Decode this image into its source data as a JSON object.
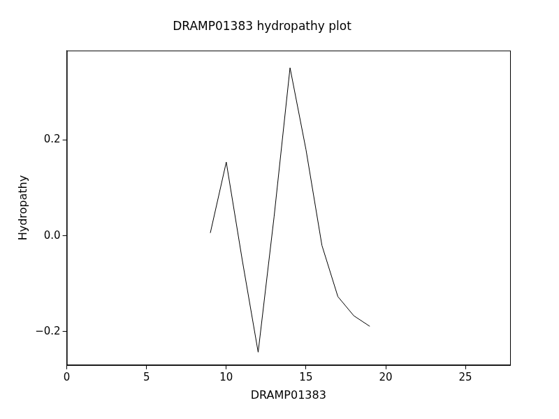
{
  "chart_data": {
    "type": "line",
    "title": "DRAMP01383 hydropathy plot",
    "xlabel": "DRAMP01383",
    "ylabel": "Hydropathy",
    "x": [
      9,
      10,
      11,
      12,
      13,
      14,
      15,
      16,
      17,
      18,
      19
    ],
    "values": [
      0.006,
      0.154,
      -0.05,
      -0.243,
      0.04,
      0.351,
      0.18,
      -0.02,
      -0.127,
      -0.167,
      -0.189
    ],
    "color": "#000000",
    "xlim": [
      0,
      27.8
    ],
    "ylim": [
      -0.27,
      0.387
    ],
    "xticks": [
      0,
      5,
      10,
      15,
      20,
      25
    ],
    "yticks": [
      {
        "value": -0.2,
        "label": "−0.2"
      },
      {
        "value": 0,
        "label": "0.0"
      },
      0.2
    ],
    "grid": false
  }
}
